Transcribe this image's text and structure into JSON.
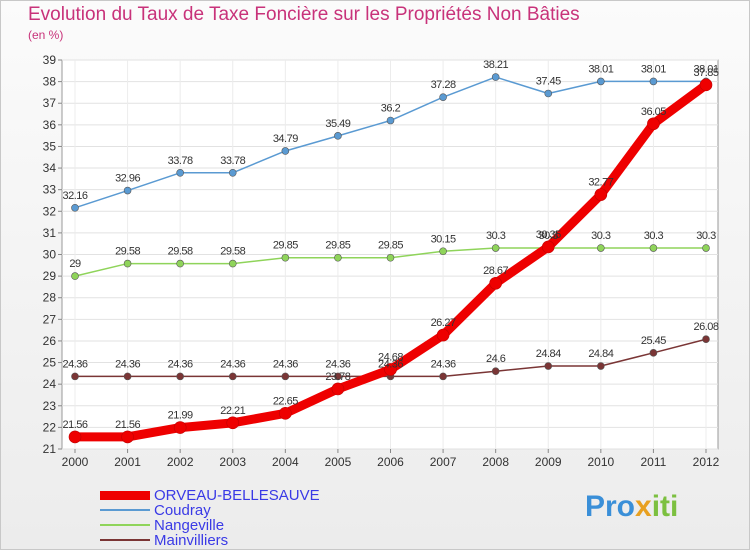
{
  "chart_data": {
    "type": "line",
    "title": "Evolution du Taux de Taxe Foncière sur les Propriétés Non Bâties",
    "ylabel": "(en %)",
    "xlabel": "",
    "x": [
      "2000",
      "2001",
      "2002",
      "2003",
      "2004",
      "2005",
      "2006",
      "2007",
      "2008",
      "2009",
      "2010",
      "2011",
      "2012"
    ],
    "ylim": [
      21,
      39
    ],
    "yticks": [
      21,
      22,
      23,
      24,
      25,
      26,
      27,
      28,
      29,
      30,
      31,
      32,
      33,
      34,
      35,
      36,
      37,
      38,
      39
    ],
    "series": [
      {
        "name": "ORVEAU-BELLESAUVE",
        "color": "#ee0000",
        "values": [
          21.56,
          21.56,
          21.99,
          22.21,
          22.65,
          23.78,
          24.68,
          26.27,
          28.67,
          30.35,
          32.77,
          36.05,
          37.85
        ],
        "labels": [
          "21.56",
          "21.56",
          "21.99",
          "22.21",
          "22.65",
          "23.78",
          "24.68",
          "26.27",
          "28.67",
          "30.35",
          "32.77",
          "36.05",
          "37.85"
        ]
      },
      {
        "name": "Coudray",
        "color": "#5a9ad2",
        "values": [
          32.16,
          32.96,
          33.78,
          33.78,
          34.79,
          35.49,
          36.2,
          37.28,
          38.21,
          37.45,
          38.01,
          38.01,
          38.01
        ],
        "labels": [
          "32.16",
          "32.96",
          "33.78",
          "33.78",
          "34.79",
          "35.49",
          "36.2",
          "37.28",
          "38.21",
          "37.45",
          "38.01",
          "38.01",
          "38.01"
        ]
      },
      {
        "name": "Nangeville",
        "color": "#8fd45a",
        "values": [
          29,
          29.58,
          29.58,
          29.58,
          29.85,
          29.85,
          29.85,
          30.15,
          30.3,
          30.3,
          30.3,
          30.3,
          30.3
        ],
        "labels": [
          "29",
          "29.58",
          "29.58",
          "29.58",
          "29.85",
          "29.85",
          "29.85",
          "30.15",
          "30.3",
          "30.3",
          "30.3",
          "30.3",
          "30.3"
        ]
      },
      {
        "name": "Mainvilliers",
        "color": "#7a3535",
        "values": [
          24.36,
          24.36,
          24.36,
          24.36,
          24.36,
          24.36,
          24.36,
          24.36,
          24.6,
          24.84,
          24.84,
          25.45,
          26.08
        ],
        "labels": [
          "24.36",
          "24.36",
          "24.36",
          "24.36",
          "24.36",
          "24.36",
          "24.36",
          "24.36",
          "24.6",
          "24.84",
          "24.84",
          "25.45",
          "26.08"
        ]
      }
    ],
    "legend_position": "bottom-left",
    "grid": true
  },
  "logo": {
    "text_pro": "Pro",
    "text_x": "x",
    "text_iti": "iti"
  }
}
